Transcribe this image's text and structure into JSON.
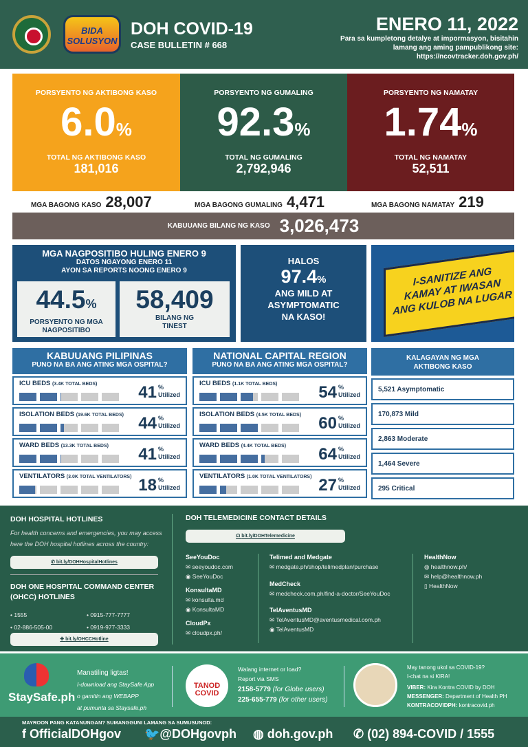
{
  "header": {
    "title": "DOH COVID-19",
    "bulletin": "CASE BULLETIN # 668",
    "date": "ENERO 11, 2022",
    "note": "Para sa kumpletong detalye at impormasyon, bisitahin lamang ang aming pampublikong site: https://ncovtracker.doh.gov.ph/",
    "logo_text": "BIDA SOLUSYON"
  },
  "summary": [
    {
      "label": "PORSYENTO NG AKTIBONG KASO",
      "percent": "6.0",
      "total_label": "TOTAL NG AKTIBONG KASO",
      "total": "181,016",
      "new_label": "MGA BAGONG KASO",
      "new": "28,007",
      "color": "#f5a31c"
    },
    {
      "label": "PORSYENTO NG GUMALING",
      "percent": "92.3",
      "total_label": "TOTAL NG GUMALING",
      "total": "2,792,946",
      "new_label": "MGA BAGONG GUMALING",
      "new": "4,471",
      "color": "#2d5b48"
    },
    {
      "label": "PORSYENTO NG NAMATAY",
      "percent": "1.74",
      "total_label": "TOTAL NG NAMATAY",
      "total": "52,511",
      "new_label": "MGA BAGONG NAMATAY",
      "new": "219",
      "color": "#6b1d1f"
    }
  ],
  "pct_sign": "%",
  "total": {
    "label": "KABUUANG BILANG NG KASO",
    "value": "3,026,473"
  },
  "positivity": {
    "heading": "MGA NAGPOSITIBO HULING ENERO 9",
    "sub1": "DATOS NGAYONG ENERO 11",
    "sub2": "AYON SA REPORTS NOONG ENERO 9",
    "rate": "44.5",
    "rate_label1": "PORSYENTO NG MGA",
    "rate_label2": "NAGPOSITIBO",
    "tested": "58,409",
    "tested_label1": "BILANG NG",
    "tested_label2": "TINEST"
  },
  "mild": {
    "l1": "HALOS",
    "value": "97.4",
    "l2": "ANG MILD AT",
    "l3": "ASYMPTOMATIC",
    "l4": "NA KASO!"
  },
  "banner": {
    "l1": "I-SANITIZE ANG",
    "l2": "KAMAY AT IWASAN",
    "l3": "ANG KULOB NA LUGAR"
  },
  "hospitals": [
    {
      "title": "KABUUANG PILIPINAS",
      "sub": "PUNO NA BA ANG ATING MGA OSPITAL?",
      "rows": [
        {
          "name": "ICU BEDS",
          "cap": "(3.4K TOTAL BEDS)",
          "value": 41
        },
        {
          "name": "ISOLATION BEDS",
          "cap": "(19.6K TOTAL BEDS)",
          "value": 44
        },
        {
          "name": "WARD BEDS",
          "cap": "(13.3K TOTAL BEDS)",
          "value": 41
        },
        {
          "name": "VENTILATORS",
          "cap": "(3.0K TOTAL VENTILATORS)",
          "value": 18
        }
      ]
    },
    {
      "title": "NATIONAL CAPITAL REGION",
      "sub": "PUNO NA BA ANG ATING MGA OSPITAL?",
      "rows": [
        {
          "name": "ICU BEDS",
          "cap": "(1.1K TOTAL BEDS)",
          "value": 54
        },
        {
          "name": "ISOLATION BEDS",
          "cap": "(4.5K TOTAL BEDS)",
          "value": 60
        },
        {
          "name": "WARD BEDS",
          "cap": "(4.4K TOTAL BEDS)",
          "value": 64
        },
        {
          "name": "VENTILATORS",
          "cap": "(1.0K TOTAL VENTILATORS)",
          "value": 27
        }
      ]
    }
  ],
  "utilized": "Utilized",
  "status": {
    "title1": "KALAGAYAN NG MGA",
    "title2": "AKTIBONG KASO",
    "items": [
      "5,521 Asymptomatic",
      "170,873 Mild",
      "2,863 Moderate",
      "1,464 Severe",
      "295 Critical"
    ]
  },
  "hotlines": {
    "title": "DOH HOSPITAL HOTLINES",
    "desc1": "For health concerns and emergencies, you may access",
    "desc2": "here the DOH hospital hotlines across the country:",
    "link": "bit.ly/DOHHospitalHotlines",
    "ohcc_title1": "DOH ONE HOSPITAL COMMAND CENTER",
    "ohcc_title2": "(OHCC) HOTLINES",
    "numbers": [
      "• 1555",
      "• 0915-777-7777",
      "• 02-886-505-00",
      "• 0919-977-3333"
    ],
    "ohcc_link": "bit.ly/OHCCHotline"
  },
  "telemed": {
    "title": "DOH TELEMEDICINE CONTACT DETAILS",
    "link": "bit.ly/DOHTelemedicine",
    "providers": [
      {
        "name": "SeeYouDoc",
        "lines": [
          "✉ seeyoudoc.com",
          "◉ SeeYouDoc"
        ]
      },
      {
        "name": "KonsultaMD",
        "lines": [
          "✉ konsulta.md",
          "◉ KonsultaMD"
        ]
      },
      {
        "name": "CloudPx",
        "lines": [
          "✉ cloudpx.ph/"
        ]
      },
      {
        "name": "Telimed and Medgate",
        "lines": [
          "✉ medgate.ph/shop/telimedplan/purchase"
        ]
      },
      {
        "name": "MedCheck",
        "lines": [
          "✉ medcheck.com.ph/find-a-doctor/SeeYouDoc"
        ]
      },
      {
        "name": "TelAventusMD",
        "lines": [
          "✉ TelAventusMD@aventusmedical.com.ph",
          "◉ TelAventusMD"
        ]
      },
      {
        "name": "HealthNow",
        "lines": [
          "◍ healthnow.ph/",
          "✉ help@healthnow.ph",
          "▯ HealthNow"
        ]
      }
    ]
  },
  "staysafe": {
    "logo": "StaySafe.ph",
    "l1": "Manatiling ligtas!",
    "l2": "I-download ang StaySafe App",
    "l3": "o gamitin ang WEBAPP",
    "l4": "at pumunta sa Staysafe.ph"
  },
  "tanod": {
    "logo": "TANOD COVID",
    "l1": "Walang internet or load?",
    "l2": "Report via SMS",
    "n1": "2158-5779",
    "n1s": "(for Globe users)",
    "n2": "225-655-779",
    "n2s": "(for other users)"
  },
  "kira": {
    "l1": "May tanong ukol sa COVID-19?",
    "l2": "I-chat na si KIRA!",
    "rows": [
      {
        "k": "VIBER:",
        "v": "Kira Kontra COVID by DOH"
      },
      {
        "k": "MESSENGER:",
        "v": "Department of Health PH"
      },
      {
        "k": "KONTRACOVIDPH:",
        "v": "kontracovid.ph"
      }
    ]
  },
  "bottom": {
    "prompt": "MAYROON PANG KATANUNGAN? SUMANGGUNI LAMANG SA SUMUSUNOD:",
    "facebook": "OfficialDOHgov",
    "twitter": "@DOHgovph",
    "web": "doh.gov.ph",
    "phone": "(02) 894-COVID  /  1555"
  }
}
